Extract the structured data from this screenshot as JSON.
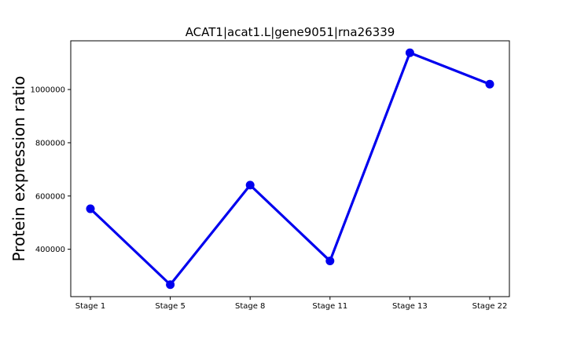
{
  "chart_data": {
    "type": "line",
    "title": "ACAT1|acat1.L|gene9051|rna26339",
    "xlabel": "",
    "ylabel": "Protein expression ratio",
    "categories": [
      "Stage 1",
      "Stage 5",
      "Stage 8",
      "Stage 11",
      "Stage 13",
      "Stage 22"
    ],
    "series": [
      {
        "name": "ACAT1|acat1.L|gene9051|rna26339",
        "values": [
          552000,
          267000,
          641000,
          356000,
          1138000,
          1020000
        ],
        "color": "#0000ee"
      }
    ],
    "yticks": [
      400000,
      600000,
      800000,
      1000000
    ],
    "ytick_labels": [
      "400000",
      "600000",
      "800000",
      "1000000"
    ],
    "ylim": [
      222000,
      1183000
    ],
    "grid": false,
    "legend": "none"
  }
}
